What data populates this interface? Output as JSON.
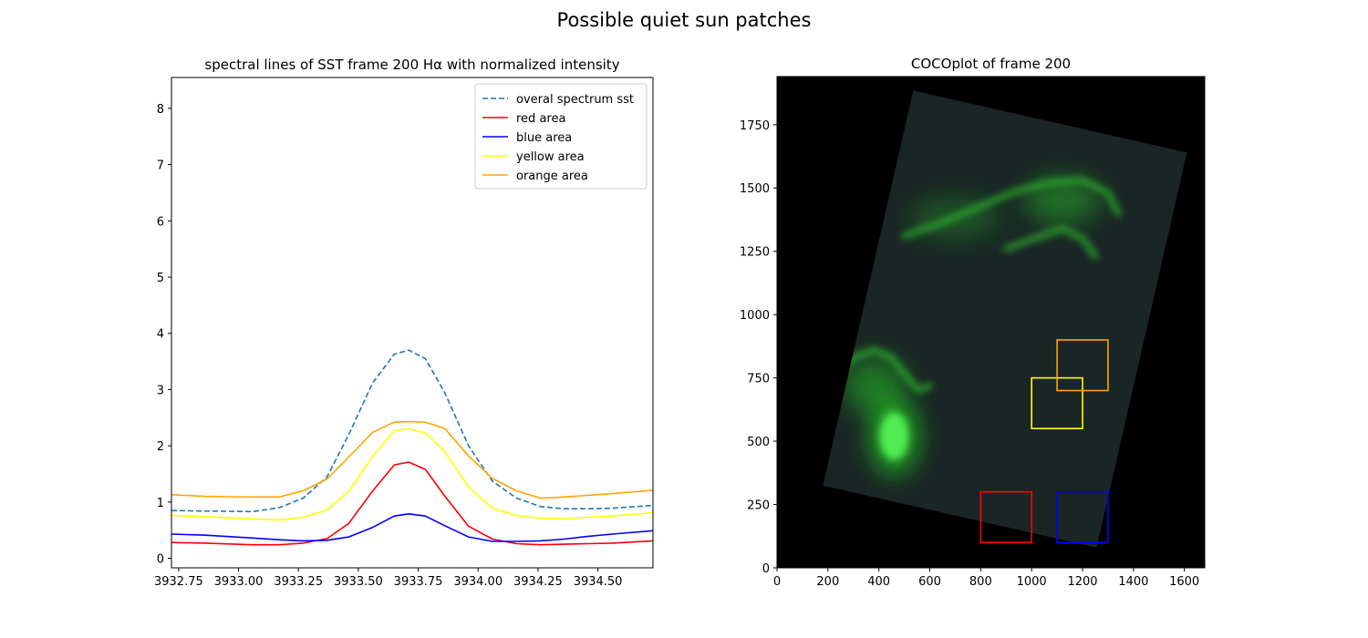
{
  "figure": {
    "title": "Possible quiet sun patches"
  },
  "chart_data": [
    {
      "type": "line",
      "title": "spectral lines of SST frame 200 Hα with normalized intensity",
      "xlabel": "",
      "ylabel": "",
      "xlim": [
        3932.72,
        3934.73
      ],
      "ylim": [
        -0.17,
        8.55
      ],
      "xticks": [
        3932.75,
        3933.0,
        3933.25,
        3933.5,
        3933.75,
        3934.0,
        3934.25,
        3934.5
      ],
      "xtick_labels": [
        "3932.75",
        "3933.00",
        "3933.25",
        "3933.50",
        "3933.75",
        "3934.00",
        "3934.25",
        "3934.50"
      ],
      "yticks": [
        0,
        1,
        2,
        3,
        4,
        5,
        6,
        7,
        8
      ],
      "ytick_labels": [
        "0",
        "1",
        "2",
        "3",
        "4",
        "5",
        "6",
        "7",
        "8"
      ],
      "grid": false,
      "legend_position": "upper right",
      "x": [
        3932.72,
        3932.86,
        3933.06,
        3933.17,
        3933.27,
        3933.37,
        3933.46,
        3933.56,
        3933.65,
        3933.71,
        3933.78,
        3933.86,
        3933.96,
        3934.06,
        3934.16,
        3934.26,
        3934.36,
        3934.46,
        3934.56,
        3934.73
      ],
      "series": [
        {
          "name": "overal spectrum sst",
          "color": "#1f77b4",
          "style": "dashed",
          "values": [
            0.85,
            0.84,
            0.83,
            0.9,
            1.07,
            1.45,
            2.2,
            3.12,
            3.63,
            3.7,
            3.55,
            2.95,
            2.0,
            1.37,
            1.07,
            0.92,
            0.88,
            0.88,
            0.89,
            0.94
          ]
        },
        {
          "name": "red area",
          "color": "#ff0000",
          "style": "solid",
          "values": [
            0.28,
            0.27,
            0.24,
            0.24,
            0.27,
            0.35,
            0.62,
            1.2,
            1.66,
            1.71,
            1.58,
            1.11,
            0.57,
            0.34,
            0.26,
            0.24,
            0.25,
            0.26,
            0.27,
            0.31
          ]
        },
        {
          "name": "blue area",
          "color": "#0000ff",
          "style": "solid",
          "values": [
            0.43,
            0.41,
            0.36,
            0.33,
            0.31,
            0.32,
            0.38,
            0.55,
            0.75,
            0.79,
            0.75,
            0.58,
            0.38,
            0.3,
            0.3,
            0.31,
            0.34,
            0.39,
            0.43,
            0.49
          ]
        },
        {
          "name": "yellow area",
          "color": "#ffff00",
          "style": "solid",
          "values": [
            0.76,
            0.74,
            0.7,
            0.68,
            0.73,
            0.86,
            1.19,
            1.81,
            2.27,
            2.3,
            2.23,
            1.9,
            1.27,
            0.89,
            0.76,
            0.71,
            0.7,
            0.73,
            0.75,
            0.81
          ]
        },
        {
          "name": "orange area",
          "color": "#ffa500",
          "style": "solid",
          "values": [
            1.13,
            1.1,
            1.09,
            1.09,
            1.2,
            1.41,
            1.8,
            2.24,
            2.42,
            2.43,
            2.42,
            2.31,
            1.82,
            1.42,
            1.2,
            1.07,
            1.09,
            1.12,
            1.15,
            1.21
          ]
        }
      ]
    },
    {
      "type": "image",
      "title": "COCOplot of frame 200",
      "xlabel": "",
      "ylabel": "",
      "xlim": [
        0,
        1680
      ],
      "ylim": [
        0,
        1940
      ],
      "xticks": [
        0,
        200,
        400,
        600,
        800,
        1000,
        1200,
        1400,
        1600
      ],
      "xtick_labels": [
        "0",
        "200",
        "400",
        "600",
        "800",
        "1000",
        "1200",
        "1400",
        "1600"
      ],
      "yticks": [
        0,
        250,
        500,
        750,
        1000,
        1250,
        1500,
        1750
      ],
      "ytick_labels": [
        "0",
        "250",
        "500",
        "750",
        "1000",
        "1250",
        "1500",
        "1750"
      ],
      "image_corners": [
        [
          180,
          325
        ],
        [
          535,
          1885
        ],
        [
          1610,
          1640
        ],
        [
          1255,
          80
        ]
      ],
      "boxes": [
        {
          "color": "#ff0000",
          "x": [
            800,
            1000
          ],
          "y": [
            100,
            300
          ]
        },
        {
          "color": "#0000ff",
          "x": [
            1100,
            1300
          ],
          "y": [
            100,
            300
          ]
        },
        {
          "color": "#ffff00",
          "x": [
            1000,
            1200
          ],
          "y": [
            550,
            750
          ]
        },
        {
          "color": "#ffa500",
          "x": [
            1100,
            1300
          ],
          "y": [
            700,
            900
          ]
        }
      ],
      "green_features": [
        {
          "x": [
            240,
            300,
            380,
            450,
            520,
            560,
            600
          ],
          "y": [
            770,
            830,
            860,
            830,
            740,
            700,
            720
          ]
        },
        {
          "x": [
            500,
            640,
            780,
            920,
            1060,
            1200,
            1300,
            1340
          ],
          "y": [
            1310,
            1360,
            1420,
            1480,
            1520,
            1530,
            1480,
            1400
          ]
        },
        {
          "x": [
            900,
            1010,
            1120,
            1200,
            1250
          ],
          "y": [
            1260,
            1300,
            1340,
            1300,
            1230
          ]
        }
      ],
      "green_blobs": [
        {
          "cx": 460,
          "cy": 520,
          "rx": 90,
          "ry": 150,
          "strength": 1.0
        },
        {
          "cx": 380,
          "cy": 720,
          "rx": 120,
          "ry": 110,
          "strength": 0.6
        },
        {
          "cx": 1120,
          "cy": 1450,
          "rx": 150,
          "ry": 90,
          "strength": 0.55
        },
        {
          "cx": 700,
          "cy": 1380,
          "rx": 180,
          "ry": 80,
          "strength": 0.35
        }
      ]
    }
  ]
}
